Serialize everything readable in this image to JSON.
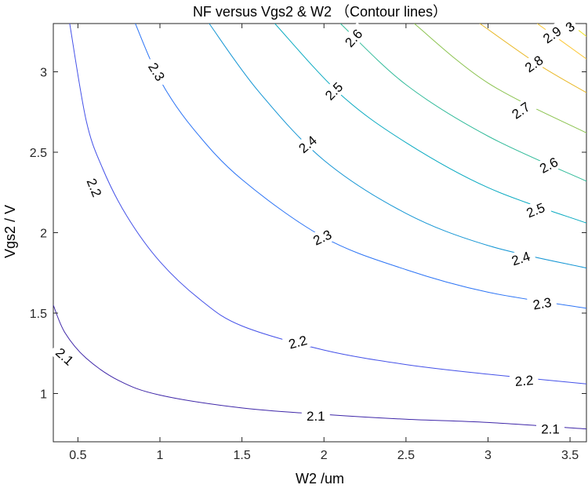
{
  "chart_data": {
    "type": "contour",
    "title": "NF versus Vgs2 & W2 （Contour lines）",
    "xlabel": "W2 /um",
    "ylabel": "Vgs2 / V",
    "xlim": [
      0.35,
      3.6
    ],
    "ylim": [
      0.7,
      3.3
    ],
    "xticks": [
      0.5,
      1,
      1.5,
      2,
      2.5,
      3,
      3.5
    ],
    "xtick_labels": [
      "0.5",
      "1",
      "1.5",
      "2",
      "2.5",
      "3",
      "3.5"
    ],
    "yticks": [
      1,
      1.5,
      2,
      2.5,
      3
    ],
    "ytick_labels": [
      "1",
      "1.5",
      "2",
      "2.5",
      "3"
    ],
    "grid": false,
    "colormap": "parula",
    "levels": [
      {
        "value": 2.1,
        "color": "#3e26a8",
        "points": [
          [
            0.35,
            1.55
          ],
          [
            0.42,
            1.38
          ],
          [
            0.55,
            1.22
          ],
          [
            0.75,
            1.08
          ],
          [
            1.0,
            0.99
          ],
          [
            1.5,
            0.91
          ],
          [
            2.0,
            0.87
          ],
          [
            2.5,
            0.84
          ],
          [
            3.0,
            0.82
          ],
          [
            3.6,
            0.78
          ]
        ],
        "labels": [
          {
            "text": "2.1",
            "x": 0.42,
            "y": 1.23,
            "angle": 42
          },
          {
            "text": "2.1",
            "x": 1.95,
            "y": 0.86,
            "angle": 0
          },
          {
            "text": "2.1",
            "x": 3.38,
            "y": 0.78,
            "angle": 0
          }
        ]
      },
      {
        "value": 2.2,
        "color": "#4451e8",
        "points": [
          [
            0.45,
            3.3
          ],
          [
            0.55,
            2.7
          ],
          [
            0.65,
            2.4
          ],
          [
            0.8,
            2.1
          ],
          [
            1.0,
            1.82
          ],
          [
            1.25,
            1.58
          ],
          [
            1.5,
            1.42
          ],
          [
            2.0,
            1.27
          ],
          [
            2.5,
            1.18
          ],
          [
            3.0,
            1.12
          ],
          [
            3.6,
            1.06
          ]
        ],
        "labels": [
          {
            "text": "2.2",
            "x": 0.6,
            "y": 2.28,
            "angle": 68
          },
          {
            "text": "2.2",
            "x": 1.84,
            "y": 1.32,
            "angle": -15
          },
          {
            "text": "2.2",
            "x": 3.22,
            "y": 1.08,
            "angle": -5
          }
        ]
      },
      {
        "value": 2.3,
        "color": "#2c74f5",
        "points": [
          [
            0.85,
            3.3
          ],
          [
            1.0,
            2.95
          ],
          [
            1.2,
            2.65
          ],
          [
            1.5,
            2.33
          ],
          [
            2.0,
            1.97
          ],
          [
            2.5,
            1.77
          ],
          [
            3.0,
            1.63
          ],
          [
            3.6,
            1.53
          ]
        ],
        "labels": [
          {
            "text": "2.3",
            "x": 0.98,
            "y": 3.0,
            "angle": 58
          },
          {
            "text": "2.3",
            "x": 1.99,
            "y": 1.97,
            "angle": -25
          },
          {
            "text": "2.3",
            "x": 3.33,
            "y": 1.56,
            "angle": -10
          }
        ]
      },
      {
        "value": 2.4,
        "color": "#1596d4",
        "points": [
          [
            1.3,
            3.3
          ],
          [
            1.6,
            2.88
          ],
          [
            2.0,
            2.45
          ],
          [
            2.5,
            2.12
          ],
          [
            3.0,
            1.92
          ],
          [
            3.6,
            1.78
          ]
        ],
        "labels": [
          {
            "text": "2.4",
            "x": 1.9,
            "y": 2.55,
            "angle": -40
          },
          {
            "text": "2.4",
            "x": 3.2,
            "y": 1.84,
            "angle": -18
          }
        ]
      },
      {
        "value": 2.5,
        "color": "#09aac1",
        "points": [
          [
            1.7,
            3.3
          ],
          [
            2.1,
            2.86
          ],
          [
            2.5,
            2.56
          ],
          [
            3.0,
            2.28
          ],
          [
            3.6,
            2.06
          ]
        ],
        "labels": [
          {
            "text": "2.5",
            "x": 2.06,
            "y": 2.88,
            "angle": -45
          },
          {
            "text": "2.5",
            "x": 3.29,
            "y": 2.14,
            "angle": -22
          }
        ]
      },
      {
        "value": 2.6,
        "color": "#31bb9a",
        "points": [
          [
            2.1,
            3.3
          ],
          [
            2.5,
            2.92
          ],
          [
            3.0,
            2.6
          ],
          [
            3.6,
            2.32
          ]
        ],
        "labels": [
          {
            "text": "2.6",
            "x": 2.18,
            "y": 3.21,
            "angle": -48
          },
          {
            "text": "2.6",
            "x": 3.37,
            "y": 2.42,
            "angle": -28
          }
        ]
      },
      {
        "value": 2.7,
        "color": "#8bc34f",
        "points": [
          [
            2.55,
            3.3
          ],
          [
            3.0,
            2.93
          ],
          [
            3.6,
            2.62
          ]
        ],
        "labels": [
          {
            "text": "2.7",
            "x": 3.2,
            "y": 2.76,
            "angle": -35
          }
        ]
      },
      {
        "value": 2.8,
        "color": "#e9b92a",
        "points": [
          [
            2.95,
            3.3
          ],
          [
            3.3,
            3.05
          ],
          [
            3.6,
            2.87
          ]
        ],
        "labels": [
          {
            "text": "2.8",
            "x": 3.28,
            "y": 3.05,
            "angle": -35
          }
        ]
      },
      {
        "value": 2.9,
        "color": "#fcc838",
        "points": [
          [
            3.3,
            3.3
          ],
          [
            3.6,
            3.08
          ]
        ],
        "labels": [
          {
            "text": "2.9",
            "x": 3.39,
            "y": 3.23,
            "angle": -35
          }
        ]
      },
      {
        "value": 3.0,
        "color": "#f0e427",
        "points": [
          [
            3.5,
            3.3
          ],
          [
            3.6,
            3.22
          ]
        ],
        "labels": [
          {
            "text": "3",
            "x": 3.5,
            "y": 3.28,
            "angle": -35
          }
        ]
      }
    ]
  }
}
